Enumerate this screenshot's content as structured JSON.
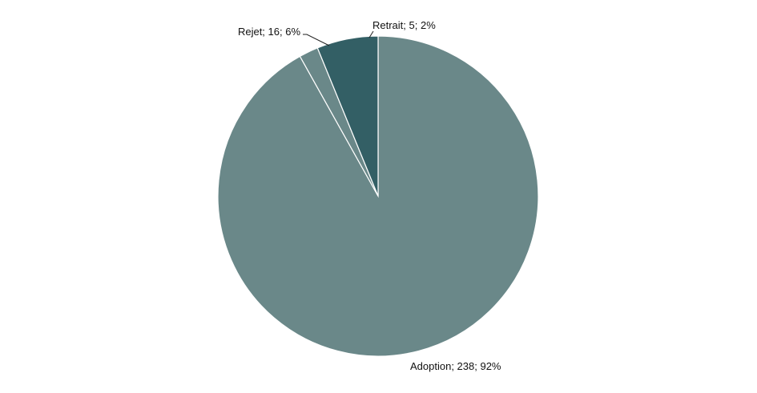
{
  "chart_data": {
    "type": "pie",
    "title": "",
    "start_angle_deg": 0,
    "direction": "clockwise",
    "slices": [
      {
        "label": "Adoption",
        "value": 238,
        "percent": 92,
        "display": "Adoption; 238; 92%",
        "color": "#6a8889"
      },
      {
        "label": "Retrait",
        "value": 5,
        "percent": 2,
        "display": "Retrait; 5; 2%",
        "color": "#6a8889"
      },
      {
        "label": "Rejet",
        "value": 16,
        "percent": 6,
        "display": "Rejet; 16; 6%",
        "color": "#335f65"
      }
    ],
    "legend": "none"
  }
}
